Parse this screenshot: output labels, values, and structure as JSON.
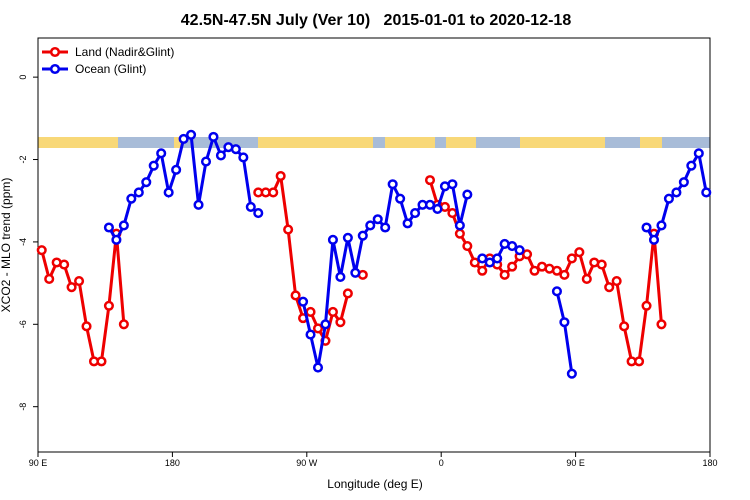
{
  "chart_data": {
    "type": "line",
    "title": "42.5N-47.5N July (Ver 10)   2015-01-01 to 2020-12-18",
    "x_label": "Longitude (deg E)",
    "y_label": "XCO2 - MLO trend (ppm)",
    "xlim": [
      90,
      540
    ],
    "xticks": [
      {
        "value": 90,
        "label": "90 E"
      },
      {
        "value": 180,
        "label": "180"
      },
      {
        "value": 270,
        "label": "90 W"
      },
      {
        "value": 360,
        "label": "0"
      },
      {
        "value": 450,
        "label": "90 E"
      },
      {
        "value": 540,
        "label": "180"
      }
    ],
    "ylim": [
      -9.1,
      0.95
    ],
    "yticks": [
      0,
      -2,
      -4,
      -6,
      -8
    ],
    "legend": "top-left",
    "series": [
      {
        "name": "Land (Nadir&Glint)",
        "color": "#ee0000",
        "x": [
          92.5,
          97.5,
          102.5,
          107.5,
          112.5,
          117.5,
          122.5,
          127.5,
          132.5,
          137.5,
          142.5,
          147.5,
          152.5,
          237.5,
          242.5,
          247.5,
          252.5,
          257.5,
          262.5,
          267.5,
          272.5,
          277.5,
          282.5,
          287.5,
          292.5,
          297.5,
          302.5,
          307.5,
          312.5,
          352.5,
          357.5,
          362.5,
          367.5,
          372.5,
          377.5,
          382.5,
          387.5,
          392.5,
          397.5,
          402.5,
          407.5,
          412.5,
          417.5,
          422.5,
          427.5,
          432.5,
          437.5,
          442.5,
          447.5,
          452.5,
          457.5,
          462.5,
          467.5,
          472.5,
          477.5,
          482.5,
          487.5,
          492.5,
          497.5,
          502.5,
          507.5
        ],
        "values": [
          -4.2,
          -4.9,
          -4.5,
          -4.55,
          -5.1,
          -4.95,
          -6.05,
          -6.9,
          -6.9,
          -5.55,
          -3.8,
          -6.0,
          null,
          -2.8,
          -2.8,
          -2.8,
          -2.4,
          -3.7,
          -5.3,
          -5.85,
          -5.7,
          -6.1,
          -6.4,
          -5.7,
          -5.95,
          -5.25,
          null,
          -4.8,
          null,
          -2.5,
          -3.1,
          -3.15,
          -3.3,
          -3.8,
          -4.1,
          -4.5,
          -4.7,
          -4.4,
          -4.55,
          -4.8,
          -4.6,
          -4.35,
          -4.3,
          -4.7,
          -4.6,
          -4.65,
          -4.7,
          -4.8,
          -4.4,
          -4.25,
          -4.9,
          -4.5,
          -4.55,
          -5.1,
          -4.95,
          -6.05,
          -6.9,
          -6.9,
          -5.55,
          -3.8,
          -6.0
        ]
      },
      {
        "name": "Ocean (Glint)",
        "color": "#0000ee",
        "x": [
          137.5,
          142.5,
          147.5,
          152.5,
          157.5,
          162.5,
          167.5,
          172.5,
          177.5,
          182.5,
          187.5,
          192.5,
          197.5,
          202.5,
          207.5,
          212.5,
          217.5,
          222.5,
          227.5,
          232.5,
          237.5,
          242.5,
          267.5,
          272.5,
          277.5,
          282.5,
          287.5,
          292.5,
          297.5,
          302.5,
          307.5,
          312.5,
          317.5,
          322.5,
          327.5,
          332.5,
          337.5,
          342.5,
          347.5,
          352.5,
          357.5,
          362.5,
          367.5,
          372.5,
          377.5,
          382.5,
          387.5,
          392.5,
          397.5,
          402.5,
          407.5,
          412.5,
          417.5,
          437.5,
          442.5,
          447.5,
          452.5,
          497.5,
          502.5,
          507.5,
          512.5,
          517.5,
          522.5,
          527.5,
          532.5,
          537.5
        ],
        "values": [
          -3.65,
          -3.95,
          -3.6,
          -2.95,
          -2.8,
          -2.55,
          -2.15,
          -1.85,
          -2.8,
          -2.25,
          -1.5,
          -1.4,
          -3.1,
          -2.05,
          -1.45,
          -1.9,
          -1.7,
          -1.75,
          -1.95,
          -3.15,
          -3.3,
          null,
          -5.45,
          -6.25,
          -7.05,
          -6.0,
          -3.95,
          -4.85,
          -3.9,
          -4.75,
          -3.85,
          -3.6,
          -3.45,
          -3.65,
          -2.6,
          -2.95,
          -3.55,
          -3.3,
          -3.1,
          -3.1,
          -3.2,
          -2.65,
          -2.6,
          -3.6,
          -2.85,
          null,
          -4.4,
          -4.5,
          -4.4,
          -4.05,
          -4.1,
          -4.2,
          null,
          -5.2,
          -5.95,
          -7.2,
          null,
          -3.65,
          -3.95,
          -3.6,
          -2.95,
          -2.8,
          -2.55,
          -2.15,
          -1.85,
          -2.8
        ]
      }
    ]
  }
}
